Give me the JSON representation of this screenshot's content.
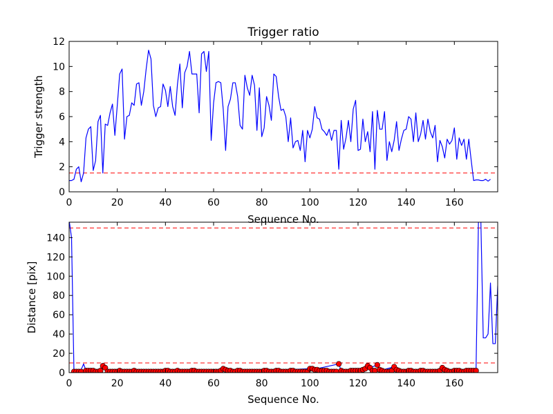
{
  "chart_data": [
    {
      "type": "line",
      "title": "Trigger ratio",
      "xlabel": "Sequence No.",
      "ylabel": "Trigger strength",
      "xlim": [
        0,
        178
      ],
      "ylim": [
        0,
        12
      ],
      "xticks": [
        0,
        20,
        40,
        60,
        80,
        100,
        120,
        140,
        160
      ],
      "yticks": [
        0,
        2,
        4,
        6,
        8,
        10,
        12
      ],
      "grid": false,
      "threshold_lines": [
        {
          "y": 1.5,
          "style": "dashed",
          "color": "#ff0000"
        }
      ],
      "series": [
        {
          "color": "#0000ff",
          "x_start": 0,
          "values": [
            0.9,
            0.9,
            1.0,
            1.8,
            2.0,
            0.8,
            1.5,
            4.3,
            5.0,
            5.2,
            1.7,
            2.5,
            5.6,
            6.1,
            1.5,
            5.4,
            5.3,
            6.3,
            7.0,
            4.5,
            6.9,
            9.4,
            9.8,
            4.2,
            6.0,
            6.1,
            7.1,
            6.9,
            8.6,
            8.7,
            6.9,
            8.0,
            9.8,
            11.3,
            10.6,
            6.9,
            6.0,
            6.7,
            6.8,
            8.6,
            8.1,
            6.8,
            8.4,
            6.8,
            6.1,
            8.6,
            10.2,
            6.7,
            9.5,
            10.0,
            11.2,
            9.4,
            9.4,
            9.4,
            6.3,
            11.0,
            11.2,
            9.6,
            11.2,
            4.1,
            7.1,
            8.7,
            8.8,
            8.7,
            6.6,
            3.3,
            6.8,
            7.4,
            8.7,
            8.7,
            7.6,
            5.3,
            5.0,
            9.3,
            8.3,
            7.7,
            9.3,
            8.5,
            4.9,
            8.3,
            4.4,
            5.1,
            7.6,
            6.9,
            5.7,
            9.4,
            9.2,
            7.6,
            6.5,
            6.6,
            6.0,
            4.0,
            5.9,
            3.5,
            4.0,
            4.1,
            3.3,
            4.9,
            2.4,
            4.9,
            4.3,
            5.0,
            6.8,
            5.9,
            5.8,
            5.0,
            4.8,
            4.5,
            5.0,
            4.1,
            4.9,
            4.9,
            1.8,
            5.7,
            3.4,
            4.3,
            5.7,
            4.0,
            6.6,
            7.3,
            3.3,
            3.4,
            5.8,
            4.0,
            4.8,
            3.2,
            6.4,
            1.8,
            6.5,
            5.0,
            5.0,
            6.4,
            2.5,
            4.0,
            3.2,
            4.1,
            5.6,
            3.3,
            4.2,
            4.9,
            5.0,
            6.0,
            5.8,
            4.0,
            6.3,
            4.0,
            4.6,
            5.7,
            4.2,
            5.8,
            4.8,
            4.3,
            5.3,
            2.4,
            4.1,
            3.6,
            2.7,
            4.2,
            3.8,
            4.1,
            5.1,
            2.6,
            4.3,
            3.7,
            4.2,
            2.6,
            4.2,
            2.5,
            0.9,
            0.95,
            0.95,
            0.9,
            0.9,
            1.0,
            0.85,
            1.0
          ]
        }
      ]
    },
    {
      "type": "line",
      "title": "",
      "xlabel": "Sequence No.",
      "ylabel": "Distance [pix]",
      "xlim": [
        0,
        178
      ],
      "ylim": [
        0,
        156
      ],
      "xticks": [
        0,
        20,
        40,
        60,
        80,
        100,
        120,
        140,
        160
      ],
      "yticks": [
        0,
        20,
        40,
        60,
        80,
        100,
        120,
        140
      ],
      "grid": false,
      "threshold_lines": [
        {
          "y": 150,
          "style": "dashed",
          "color": "#ff0000"
        },
        {
          "y": 10,
          "style": "dashed",
          "color": "#ff0000"
        }
      ],
      "series": [
        {
          "color": "#0000ff",
          "marker": "none",
          "points": [
            [
              0,
              158
            ],
            [
              1,
              140
            ],
            [
              2,
              2
            ],
            [
              3,
              1
            ],
            [
              4,
              2
            ],
            [
              5,
              3
            ],
            [
              6,
              9
            ],
            [
              7,
              2
            ],
            [
              8,
              2
            ],
            [
              9,
              2
            ],
            [
              10,
              2
            ],
            [
              11,
              1
            ],
            [
              12,
              1
            ],
            [
              13,
              2
            ],
            [
              14,
              7
            ],
            [
              15,
              5
            ],
            [
              16,
              1
            ],
            [
              17,
              1
            ],
            [
              18,
              1
            ],
            [
              19,
              2
            ],
            [
              20,
              1
            ],
            [
              21,
              1
            ],
            [
              22,
              2
            ],
            [
              23,
              2
            ],
            [
              24,
              2
            ],
            [
              25,
              1
            ],
            [
              26,
              1
            ],
            [
              27,
              2
            ],
            [
              28,
              1
            ],
            [
              29,
              2
            ],
            [
              30,
              1
            ],
            [
              40,
              2
            ],
            [
              60,
              1
            ],
            [
              64,
              4
            ],
            [
              65,
              3
            ],
            [
              70,
              1
            ],
            [
              81,
              2
            ],
            [
              100,
              4
            ],
            [
              101,
              3
            ],
            [
              112,
              9
            ],
            [
              113,
              2
            ],
            [
              120,
              1
            ],
            [
              123,
              4
            ],
            [
              124,
              7
            ],
            [
              125,
              5
            ],
            [
              128,
              8
            ],
            [
              129,
              2
            ],
            [
              135,
              6
            ],
            [
              136,
              3
            ],
            [
              150,
              1
            ],
            [
              155,
              5
            ],
            [
              156,
              3
            ],
            [
              160,
              2
            ],
            [
              168,
              2
            ],
            [
              169,
              2
            ],
            [
              170,
              156
            ],
            [
              171,
              158
            ],
            [
              172,
              36
            ],
            [
              173,
              36
            ],
            [
              174,
              40
            ],
            [
              175,
              93
            ],
            [
              176,
              30
            ],
            [
              177,
              30
            ],
            [
              178,
              90
            ]
          ]
        },
        {
          "color": "#ff0000",
          "marker": "circle",
          "points": [
            [
              2,
              1
            ],
            [
              3,
              1
            ],
            [
              4,
              1
            ],
            [
              5,
              1
            ],
            [
              7,
              2
            ],
            [
              8,
              2
            ],
            [
              9,
              2
            ],
            [
              10,
              2
            ],
            [
              11,
              1
            ],
            [
              12,
              1
            ],
            [
              13,
              2
            ],
            [
              14,
              7
            ],
            [
              15,
              5
            ],
            [
              16,
              1
            ],
            [
              17,
              1
            ],
            [
              18,
              1
            ],
            [
              19,
              1
            ],
            [
              20,
              1
            ],
            [
              21,
              2
            ],
            [
              22,
              1
            ],
            [
              23,
              1
            ],
            [
              24,
              1
            ],
            [
              25,
              1
            ],
            [
              26,
              1
            ],
            [
              27,
              2
            ],
            [
              28,
              1
            ],
            [
              29,
              1
            ],
            [
              30,
              1
            ],
            [
              31,
              1
            ],
            [
              32,
              1
            ],
            [
              33,
              1
            ],
            [
              34,
              1
            ],
            [
              35,
              1
            ],
            [
              36,
              1
            ],
            [
              37,
              1
            ],
            [
              38,
              1
            ],
            [
              39,
              1
            ],
            [
              40,
              2
            ],
            [
              41,
              2
            ],
            [
              42,
              1
            ],
            [
              43,
              1
            ],
            [
              44,
              1
            ],
            [
              45,
              2
            ],
            [
              46,
              1
            ],
            [
              47,
              1
            ],
            [
              48,
              1
            ],
            [
              49,
              1
            ],
            [
              50,
              1
            ],
            [
              51,
              2
            ],
            [
              52,
              2
            ],
            [
              53,
              1
            ],
            [
              54,
              1
            ],
            [
              55,
              1
            ],
            [
              56,
              1
            ],
            [
              57,
              1
            ],
            [
              58,
              1
            ],
            [
              59,
              1
            ],
            [
              60,
              1
            ],
            [
              61,
              1
            ],
            [
              62,
              1
            ],
            [
              63,
              2
            ],
            [
              64,
              4
            ],
            [
              65,
              3
            ],
            [
              66,
              2
            ],
            [
              67,
              2
            ],
            [
              68,
              1
            ],
            [
              69,
              1
            ],
            [
              70,
              2
            ],
            [
              71,
              2
            ],
            [
              72,
              1
            ],
            [
              73,
              1
            ],
            [
              74,
              1
            ],
            [
              75,
              1
            ],
            [
              76,
              1
            ],
            [
              77,
              1
            ],
            [
              78,
              1
            ],
            [
              79,
              1
            ],
            [
              80,
              1
            ],
            [
              81,
              2
            ],
            [
              82,
              2
            ],
            [
              83,
              1
            ],
            [
              84,
              1
            ],
            [
              85,
              1
            ],
            [
              86,
              2
            ],
            [
              87,
              2
            ],
            [
              88,
              1
            ],
            [
              89,
              1
            ],
            [
              90,
              1
            ],
            [
              91,
              1
            ],
            [
              92,
              2
            ],
            [
              93,
              2
            ],
            [
              94,
              1
            ],
            [
              95,
              1
            ],
            [
              96,
              1
            ],
            [
              97,
              1
            ],
            [
              98,
              1
            ],
            [
              99,
              1
            ],
            [
              100,
              4
            ],
            [
              101,
              4
            ],
            [
              102,
              3
            ],
            [
              103,
              3
            ],
            [
              104,
              2
            ],
            [
              105,
              2
            ],
            [
              106,
              2
            ],
            [
              107,
              2
            ],
            [
              108,
              1
            ],
            [
              109,
              1
            ],
            [
              110,
              1
            ],
            [
              111,
              1
            ],
            [
              112,
              9
            ],
            [
              113,
              2
            ],
            [
              114,
              1
            ],
            [
              115,
              1
            ],
            [
              116,
              1
            ],
            [
              117,
              2
            ],
            [
              118,
              2
            ],
            [
              119,
              2
            ],
            [
              120,
              2
            ],
            [
              121,
              2
            ],
            [
              122,
              3
            ],
            [
              123,
              4
            ],
            [
              124,
              7
            ],
            [
              125,
              5
            ],
            [
              126,
              2
            ],
            [
              127,
              2
            ],
            [
              128,
              8
            ],
            [
              129,
              3
            ],
            [
              130,
              2
            ],
            [
              131,
              1
            ],
            [
              132,
              1
            ],
            [
              133,
              1
            ],
            [
              134,
              2
            ],
            [
              135,
              6
            ],
            [
              136,
              3
            ],
            [
              137,
              2
            ],
            [
              138,
              1
            ],
            [
              139,
              1
            ],
            [
              140,
              1
            ],
            [
              141,
              2
            ],
            [
              142,
              2
            ],
            [
              143,
              1
            ],
            [
              144,
              1
            ],
            [
              145,
              1
            ],
            [
              146,
              2
            ],
            [
              147,
              2
            ],
            [
              148,
              1
            ],
            [
              149,
              1
            ],
            [
              150,
              1
            ],
            [
              151,
              1
            ],
            [
              152,
              1
            ],
            [
              153,
              1
            ],
            [
              154,
              2
            ],
            [
              155,
              5
            ],
            [
              156,
              3
            ],
            [
              157,
              2
            ],
            [
              158,
              1
            ],
            [
              159,
              1
            ],
            [
              160,
              2
            ],
            [
              161,
              2
            ],
            [
              162,
              2
            ],
            [
              163,
              1
            ],
            [
              164,
              1
            ],
            [
              165,
              2
            ],
            [
              166,
              2
            ],
            [
              167,
              2
            ],
            [
              168,
              2
            ],
            [
              169,
              2
            ]
          ]
        }
      ]
    }
  ]
}
